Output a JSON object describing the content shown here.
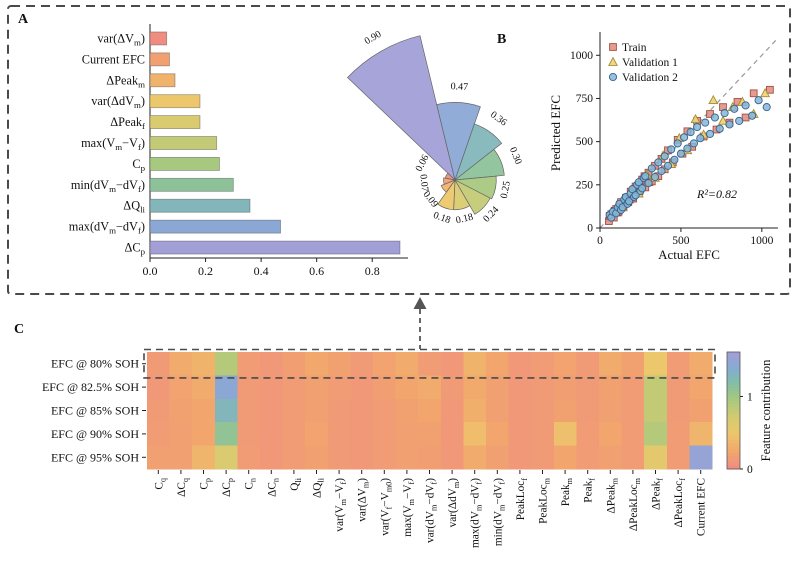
{
  "panels": {
    "a": {
      "label": "A"
    },
    "b": {
      "label": "B"
    },
    "c": {
      "label": "C"
    }
  },
  "palette": {
    "colormap_stops": [
      {
        "t": 0.0,
        "color": "#ef8d80"
      },
      {
        "t": 0.14,
        "color": "#f2a76c"
      },
      {
        "t": 0.3,
        "color": "#edc76c"
      },
      {
        "t": 0.46,
        "color": "#cfcb72"
      },
      {
        "t": 0.6,
        "color": "#a6c87f"
      },
      {
        "t": 0.74,
        "color": "#83bfa4"
      },
      {
        "t": 0.87,
        "color": "#84abd3"
      },
      {
        "t": 1.0,
        "color": "#a19fd6"
      }
    ],
    "train_color": "#e0897b",
    "val1_color": "#ecd17c",
    "val2_color": "#85b6d8",
    "identity_line": "#9a9a9a",
    "dashed_box": "#4a4a4a"
  },
  "chart_data": [
    {
      "id": "feature-importance-bar",
      "type": "bar",
      "orientation": "horizontal",
      "categories": [
        "var(ΔV_m)",
        "Current EFC",
        "ΔPeak_m",
        "var(ΔdV_m)",
        "ΔPeak_f",
        "max(V_m−V_f)",
        "C_p",
        "min(dV_m−dV_f)",
        "ΔQ_li",
        "max(dV_m−dV_f)",
        "ΔC_p"
      ],
      "values": [
        0.06,
        0.07,
        0.09,
        0.18,
        0.18,
        0.24,
        0.25,
        0.3,
        0.36,
        0.47,
        0.9
      ],
      "xticks": [
        "0.0",
        "0.2",
        "0.4",
        "0.6",
        "0.8"
      ],
      "xtick_values": [
        0,
        0.2,
        0.4,
        0.6,
        0.8
      ],
      "xlim": [
        0,
        0.9
      ]
    },
    {
      "id": "feature-importance-rose",
      "type": "rose",
      "values": [
        0.9,
        0.47,
        0.36,
        0.3,
        0.25,
        0.24,
        0.18,
        0.18,
        0.09,
        0.07,
        0.06
      ],
      "labels": [
        "0.90",
        "0.47",
        "0.36",
        "0.30",
        "0.25",
        "0.24",
        "0.18",
        "0.18",
        "0.09",
        "0.07",
        "0.06"
      ],
      "start_angle_deg": 120,
      "direction": "clockwise"
    },
    {
      "id": "efc-scatter",
      "type": "scatter",
      "xlabel": "Actual EFC",
      "ylabel": "Predicted EFC",
      "xlim": [
        0,
        1100
      ],
      "ylim": [
        0,
        1100
      ],
      "xticks": [
        0,
        500,
        1000
      ],
      "yticks": [
        0,
        250,
        500,
        750,
        1000
      ],
      "annotation": "R²=0.82",
      "identity_line": true,
      "series": [
        {
          "name": "Train",
          "marker": "square",
          "points": [
            [
              55,
              40
            ],
            [
              60,
              70
            ],
            [
              70,
              80
            ],
            [
              85,
              60
            ],
            [
              90,
              100
            ],
            [
              100,
              110
            ],
            [
              110,
              90
            ],
            [
              115,
              95
            ],
            [
              125,
              135
            ],
            [
              130,
              150
            ],
            [
              145,
              120
            ],
            [
              155,
              140
            ],
            [
              160,
              175
            ],
            [
              175,
              150
            ],
            [
              185,
              165
            ],
            [
              190,
              210
            ],
            [
              205,
              170
            ],
            [
              215,
              225
            ],
            [
              220,
              240
            ],
            [
              240,
              200
            ],
            [
              245,
              215
            ],
            [
              260,
              280
            ],
            [
              275,
              300
            ],
            [
              280,
              235
            ],
            [
              300,
              320
            ],
            [
              305,
              265
            ],
            [
              320,
              270
            ],
            [
              340,
              360
            ],
            [
              360,
              300
            ],
            [
              380,
              400
            ],
            [
              400,
              340
            ],
            [
              420,
              450
            ],
            [
              450,
              380
            ],
            [
              480,
              510
            ],
            [
              510,
              430
            ],
            [
              540,
              560
            ],
            [
              570,
              470
            ],
            [
              600,
              620
            ],
            [
              640,
              530
            ],
            [
              680,
              660
            ],
            [
              720,
              570
            ],
            [
              760,
              700
            ],
            [
              800,
              610
            ],
            [
              850,
              730
            ],
            [
              900,
              640
            ],
            [
              950,
              780
            ],
            [
              1050,
              800
            ]
          ]
        },
        {
          "name": "Validation 1",
          "marker": "triangle",
          "points": [
            [
              90,
              100
            ],
            [
              140,
              120
            ],
            [
              190,
              210
            ],
            [
              240,
              200
            ],
            [
              290,
              310
            ],
            [
              340,
              290
            ],
            [
              390,
              420
            ],
            [
              440,
              370
            ],
            [
              490,
              520
            ],
            [
              540,
              450
            ],
            [
              590,
              630
            ],
            [
              640,
              540
            ],
            [
              700,
              740
            ],
            [
              760,
              620
            ],
            [
              820,
              700
            ],
            [
              880,
              730
            ],
            [
              950,
              660
            ],
            [
              1020,
              780
            ]
          ]
        },
        {
          "name": "Validation 2",
          "marker": "circle",
          "points": [
            [
              60,
              75
            ],
            [
              70,
              60
            ],
            [
              80,
              95
            ],
            [
              100,
              85
            ],
            [
              110,
              120
            ],
            [
              120,
              140
            ],
            [
              130,
              105
            ],
            [
              140,
              120
            ],
            [
              150,
              165
            ],
            [
              160,
              180
            ],
            [
              170,
              140
            ],
            [
              180,
              155
            ],
            [
              190,
              200
            ],
            [
              200,
              225
            ],
            [
              210,
              180
            ],
            [
              220,
              190
            ],
            [
              230,
              250
            ],
            [
              240,
              265
            ],
            [
              250,
              215
            ],
            [
              260,
              230
            ],
            [
              270,
              290
            ],
            [
              280,
              300
            ],
            [
              300,
              260
            ],
            [
              320,
              345
            ],
            [
              340,
              295
            ],
            [
              360,
              380
            ],
            [
              380,
              330
            ],
            [
              400,
              415
            ],
            [
              420,
              360
            ],
            [
              440,
              455
            ],
            [
              460,
              395
            ],
            [
              480,
              490
            ],
            [
              500,
              430
            ],
            [
              520,
              525
            ],
            [
              540,
              460
            ],
            [
              560,
              555
            ],
            [
              580,
              490
            ],
            [
              600,
              585
            ],
            [
              620,
              520
            ],
            [
              650,
              610
            ],
            [
              680,
              545
            ],
            [
              710,
              640
            ],
            [
              740,
              575
            ],
            [
              770,
              665
            ],
            [
              800,
              600
            ],
            [
              830,
              690
            ],
            [
              860,
              620
            ],
            [
              900,
              710
            ],
            [
              940,
              650
            ],
            [
              980,
              740
            ],
            [
              1030,
              700
            ]
          ]
        }
      ]
    },
    {
      "id": "feature-contribution-heatmap",
      "type": "heatmap",
      "rows": [
        "EFC @ 80% SOH",
        "EFC @ 82.5% SOH",
        "EFC @ 85% SOH",
        "EFC @ 90% SOH",
        "EFC @ 95% SOH"
      ],
      "columns": [
        "C_q",
        "ΔC_q",
        "C_p",
        "ΔC_p",
        "C_n",
        "ΔC_n",
        "Q_li",
        "ΔQ_li",
        "var(V_m−V_f)",
        "var(ΔV_m)",
        "var(V_f−V_m0)",
        "max(V_m−V_f)",
        "var(dV_m−dV_f)",
        "var(ΔdV_m)",
        "max(dV_m−dV_f)",
        "min(dV_m−dV_f)",
        "PeakLoc_f",
        "PeakLoc_m",
        "Peak_m",
        "Peak_f",
        "ΔPeak_m",
        "ΔPeakLoc_m",
        "ΔPeak_f",
        "ΔPeakLoc_f",
        "Current EFC"
      ],
      "values": [
        [
          0.07,
          0.16,
          0.2,
          0.55,
          0.08,
          0.06,
          0.09,
          0.14,
          0.11,
          0.07,
          0.12,
          0.16,
          0.08,
          0.06,
          0.2,
          0.13,
          0.06,
          0.08,
          0.12,
          0.07,
          0.16,
          0.11,
          0.3,
          0.08,
          0.16
        ],
        [
          0.06,
          0.12,
          0.16,
          0.9,
          0.07,
          0.06,
          0.08,
          0.11,
          0.08,
          0.06,
          0.09,
          0.13,
          0.16,
          0.07,
          0.15,
          0.1,
          0.06,
          0.07,
          0.09,
          0.07,
          0.11,
          0.08,
          0.5,
          0.07,
          0.13
        ],
        [
          0.07,
          0.11,
          0.13,
          0.8,
          0.07,
          0.06,
          0.08,
          0.1,
          0.07,
          0.06,
          0.08,
          0.11,
          0.13,
          0.06,
          0.18,
          0.1,
          0.06,
          0.07,
          0.11,
          0.07,
          0.1,
          0.08,
          0.5,
          0.07,
          0.11
        ],
        [
          0.08,
          0.1,
          0.13,
          0.68,
          0.07,
          0.06,
          0.08,
          0.12,
          0.07,
          0.06,
          0.08,
          0.1,
          0.11,
          0.06,
          0.25,
          0.13,
          0.06,
          0.07,
          0.26,
          0.08,
          0.13,
          0.08,
          0.55,
          0.08,
          0.21
        ],
        [
          0.1,
          0.1,
          0.21,
          0.4,
          0.08,
          0.06,
          0.08,
          0.11,
          0.07,
          0.06,
          0.08,
          0.1,
          0.09,
          0.06,
          0.16,
          0.1,
          0.06,
          0.07,
          0.13,
          0.08,
          0.1,
          0.08,
          0.35,
          0.08,
          0.95
        ]
      ],
      "vmin": 0,
      "vmax": 1,
      "highlight_row": 0,
      "colorbar": {
        "label": "Feature contribution",
        "ticks": [
          {
            "label": "1",
            "frac": 0.62
          },
          {
            "label": "0",
            "frac": 0.0
          }
        ]
      }
    }
  ]
}
